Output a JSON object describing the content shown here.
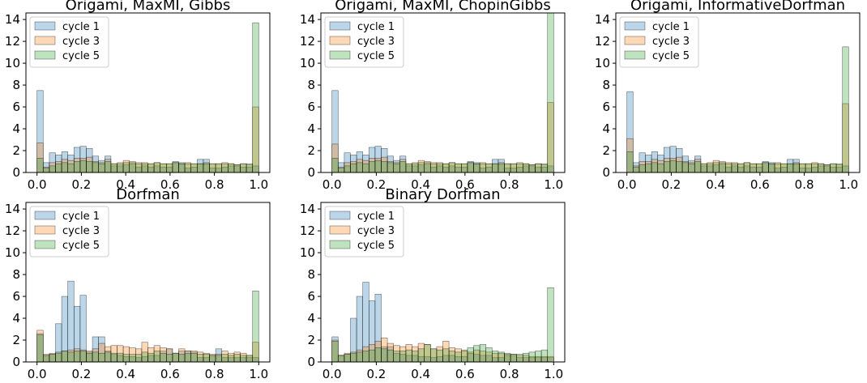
{
  "colors": {
    "cycle1": "#1f77b4",
    "cycle3": "#ff7f0e",
    "cycle5": "#2ca02c"
  },
  "chart_data": [
    {
      "type": "bar",
      "subtype": "overlaid-histogram",
      "title": "Origami, MaxMI, Gibbs",
      "xlim": [
        -0.05,
        1.05
      ],
      "ylim": [
        0,
        14.6
      ],
      "xticks": [
        "0.0",
        "0.2",
        "0.4",
        "0.6",
        "0.8",
        "1.0"
      ],
      "yticks": [
        "0",
        "2",
        "4",
        "6",
        "8",
        "10",
        "12",
        "14"
      ],
      "legend": {
        "placement": "top-left",
        "entries": [
          "cycle 1",
          "cycle 3",
          "cycle 5"
        ]
      },
      "bin_range": [
        0,
        1
      ],
      "series": [
        {
          "name": "cycle 1",
          "values": [
            7.5,
            0.9,
            1.8,
            1.6,
            1.9,
            1.6,
            2.3,
            2.4,
            2.2,
            1.5,
            1.1,
            1.5,
            0.6,
            0.6,
            0.7,
            0.8,
            0.5,
            0.6,
            0.5,
            0.6,
            0.5,
            0.5,
            1.0,
            0.9,
            0.4,
            0.5,
            1.2,
            1.2,
            0.4,
            0.4,
            0.5,
            0.6,
            0.6,
            0.5,
            0.5,
            0.6
          ]
        },
        {
          "name": "cycle 3",
          "values": [
            2.7,
            0.5,
            0.9,
            1.0,
            1.2,
            1.1,
            1.3,
            1.3,
            1.4,
            1.0,
            0.9,
            1.2,
            0.8,
            0.9,
            1.1,
            1.0,
            0.9,
            0.9,
            0.8,
            0.9,
            0.8,
            0.8,
            0.9,
            0.8,
            0.9,
            0.8,
            0.8,
            0.9,
            0.8,
            0.8,
            0.9,
            0.8,
            0.7,
            0.8,
            0.7,
            6.0
          ]
        },
        {
          "name": "cycle 5",
          "values": [
            1.3,
            0.4,
            0.6,
            0.8,
            0.9,
            0.8,
            1.0,
            1.1,
            1.0,
            0.9,
            0.8,
            1.0,
            0.8,
            0.8,
            0.9,
            0.9,
            0.8,
            0.8,
            0.8,
            0.9,
            0.8,
            0.8,
            0.9,
            0.8,
            0.8,
            0.8,
            0.8,
            0.8,
            0.8,
            0.8,
            0.8,
            0.8,
            0.7,
            0.8,
            0.8,
            13.7
          ]
        }
      ]
    },
    {
      "type": "bar",
      "subtype": "overlaid-histogram",
      "title": "Origami, MaxMI, ChopinGibbs",
      "xlim": [
        -0.05,
        1.05
      ],
      "ylim": [
        0,
        14.6
      ],
      "xticks": [
        "0.0",
        "0.2",
        "0.4",
        "0.6",
        "0.8",
        "1.0"
      ],
      "yticks": [
        "0",
        "2",
        "4",
        "6",
        "8",
        "10",
        "12",
        "14"
      ],
      "legend": {
        "placement": "top-left",
        "entries": [
          "cycle 1",
          "cycle 3",
          "cycle 5"
        ]
      },
      "bin_range": [
        0,
        1
      ],
      "series": [
        {
          "name": "cycle 1",
          "values": [
            7.5,
            0.9,
            1.8,
            1.6,
            1.9,
            1.6,
            2.3,
            2.4,
            2.2,
            1.5,
            1.1,
            1.5,
            0.6,
            0.6,
            0.7,
            0.8,
            0.5,
            0.6,
            0.5,
            0.6,
            0.5,
            0.5,
            1.0,
            0.9,
            0.4,
            0.5,
            1.2,
            1.2,
            0.4,
            0.4,
            0.5,
            0.6,
            0.6,
            0.5,
            0.5,
            0.6
          ]
        },
        {
          "name": "cycle 3",
          "values": [
            2.6,
            0.5,
            0.9,
            1.0,
            1.2,
            1.1,
            1.3,
            1.3,
            1.4,
            1.0,
            0.9,
            1.2,
            0.8,
            0.9,
            1.1,
            1.0,
            0.9,
            0.9,
            0.8,
            0.9,
            0.8,
            0.8,
            0.9,
            0.8,
            0.9,
            0.8,
            0.8,
            0.9,
            0.8,
            0.8,
            0.9,
            0.8,
            0.7,
            0.8,
            0.7,
            6.4
          ]
        },
        {
          "name": "cycle 5",
          "values": [
            1.3,
            0.4,
            0.6,
            0.8,
            0.9,
            0.8,
            1.0,
            1.1,
            1.0,
            0.9,
            0.8,
            1.0,
            0.8,
            0.8,
            0.9,
            0.9,
            0.8,
            0.8,
            0.8,
            0.9,
            0.8,
            0.8,
            0.9,
            0.8,
            0.8,
            0.8,
            0.8,
            0.8,
            0.8,
            0.8,
            0.8,
            0.8,
            0.7,
            0.8,
            0.8,
            14.6
          ]
        }
      ]
    },
    {
      "type": "bar",
      "subtype": "overlaid-histogram",
      "title": "Origami, InformativeDorfman",
      "xlim": [
        -0.05,
        1.05
      ],
      "ylim": [
        0,
        14.6
      ],
      "xticks": [
        "0.0",
        "0.2",
        "0.4",
        "0.6",
        "0.8",
        "1.0"
      ],
      "yticks": [
        "0",
        "2",
        "4",
        "6",
        "8",
        "10",
        "12",
        "14"
      ],
      "legend": {
        "placement": "top-left",
        "entries": [
          "cycle 1",
          "cycle 3",
          "cycle 5"
        ]
      },
      "bin_range": [
        0,
        1
      ],
      "series": [
        {
          "name": "cycle 1",
          "values": [
            7.4,
            0.9,
            1.8,
            1.6,
            1.9,
            1.6,
            2.3,
            2.4,
            2.2,
            1.5,
            1.1,
            1.5,
            0.6,
            0.6,
            0.7,
            0.8,
            0.5,
            0.6,
            0.5,
            0.6,
            0.5,
            0.5,
            1.0,
            0.9,
            0.4,
            0.5,
            1.2,
            1.2,
            0.4,
            0.4,
            0.5,
            0.6,
            0.6,
            0.5,
            0.5,
            0.6
          ]
        },
        {
          "name": "cycle 3",
          "values": [
            3.1,
            0.6,
            1.0,
            1.0,
            1.2,
            1.1,
            1.3,
            1.3,
            1.4,
            1.0,
            0.9,
            1.2,
            0.8,
            0.9,
            1.1,
            1.0,
            0.9,
            0.9,
            0.8,
            0.9,
            0.8,
            0.8,
            0.9,
            0.8,
            0.9,
            0.8,
            0.8,
            0.9,
            0.8,
            0.8,
            0.9,
            0.8,
            0.7,
            0.8,
            0.7,
            6.3
          ]
        },
        {
          "name": "cycle 5",
          "values": [
            1.9,
            0.5,
            0.7,
            0.8,
            0.9,
            0.8,
            1.0,
            1.1,
            1.0,
            0.9,
            0.8,
            1.0,
            0.8,
            0.8,
            0.9,
            0.9,
            0.8,
            0.8,
            0.8,
            0.9,
            0.8,
            0.8,
            0.9,
            0.8,
            0.8,
            0.8,
            0.8,
            0.8,
            0.8,
            0.8,
            0.8,
            0.8,
            0.7,
            0.8,
            0.8,
            11.5
          ]
        }
      ]
    },
    {
      "type": "bar",
      "subtype": "overlaid-histogram",
      "title": "Dorfman",
      "xlim": [
        -0.05,
        1.05
      ],
      "ylim": [
        0,
        14.6
      ],
      "xticks": [
        "0.0",
        "0.2",
        "0.4",
        "0.6",
        "0.8",
        "1.0"
      ],
      "yticks": [
        "0",
        "2",
        "4",
        "6",
        "8",
        "10",
        "12",
        "14"
      ],
      "legend": {
        "placement": "top-left",
        "entries": [
          "cycle 1",
          "cycle 3",
          "cycle 5"
        ]
      },
      "bin_range": [
        0,
        1
      ],
      "series": [
        {
          "name": "cycle 1",
          "values": [
            2.6,
            0.6,
            0.7,
            3.5,
            6.0,
            7.4,
            5.1,
            6.1,
            0.9,
            2.3,
            2.3,
            1.0,
            0.7,
            0.6,
            0.5,
            0.5,
            0.4,
            0.5,
            0.6,
            0.6,
            1.0,
            1.2,
            0.8,
            1.0,
            1.0,
            0.9,
            0.4,
            0.4,
            0.6,
            1.2,
            0.4,
            0.4,
            0.4,
            0.4,
            0.4,
            0.4
          ]
        },
        {
          "name": "cycle 3",
          "values": [
            2.9,
            0.7,
            0.8,
            0.8,
            1.0,
            1.1,
            1.2,
            1.1,
            1.0,
            1.2,
            1.7,
            1.4,
            1.5,
            1.5,
            1.4,
            1.3,
            1.2,
            1.8,
            1.3,
            1.5,
            1.3,
            1.2,
            0.8,
            1.2,
            1.0,
            1.0,
            0.9,
            0.8,
            0.7,
            0.7,
            1.0,
            0.8,
            0.9,
            0.8,
            0.6,
            1.8
          ]
        },
        {
          "name": "cycle 5",
          "values": [
            2.5,
            0.6,
            0.7,
            0.9,
            1.0,
            0.9,
            1.0,
            1.0,
            0.8,
            0.9,
            0.8,
            0.9,
            0.8,
            0.8,
            0.7,
            0.7,
            0.7,
            0.9,
            0.8,
            1.0,
            0.8,
            0.7,
            0.8,
            0.7,
            0.8,
            0.8,
            0.7,
            0.7,
            0.6,
            0.6,
            0.7,
            0.6,
            0.7,
            0.6,
            0.6,
            6.5
          ]
        }
      ]
    },
    {
      "type": "bar",
      "subtype": "overlaid-histogram",
      "title": "Binary Dorfman",
      "xlim": [
        -0.05,
        1.05
      ],
      "ylim": [
        0,
        14.6
      ],
      "xticks": [
        "0.0",
        "0.2",
        "0.4",
        "0.6",
        "0.8",
        "1.0"
      ],
      "yticks": [
        "0",
        "2",
        "4",
        "6",
        "8",
        "10",
        "12",
        "14"
      ],
      "legend": {
        "placement": "top-left",
        "entries": [
          "cycle 1",
          "cycle 3",
          "cycle 5"
        ]
      },
      "bin_range": [
        0,
        1
      ],
      "series": [
        {
          "name": "cycle 1",
          "values": [
            2.3,
            0.6,
            0.7,
            4.0,
            6.0,
            7.3,
            5.6,
            6.2,
            1.4,
            1.4,
            0.8,
            0.7,
            0.6,
            0.6,
            0.5,
            0.5,
            0.4,
            0.5,
            0.6,
            0.6,
            0.5,
            0.5,
            0.8,
            0.7,
            0.6,
            0.6,
            0.4,
            0.4,
            0.6,
            0.6,
            0.4,
            0.4,
            0.4,
            0.4,
            0.4,
            0.4
          ]
        },
        {
          "name": "cycle 3",
          "values": [
            2.0,
            0.6,
            0.8,
            0.9,
            1.1,
            1.4,
            1.6,
            1.9,
            2.2,
            1.7,
            1.5,
            1.4,
            1.6,
            1.4,
            1.7,
            1.6,
            1.2,
            1.4,
            1.9,
            1.3,
            1.2,
            1.1,
            0.9,
            1.1,
            1.0,
            0.9,
            0.8,
            0.8,
            0.7,
            0.7,
            0.6,
            0.6,
            0.5,
            0.5,
            0.5,
            0.5
          ]
        },
        {
          "name": "cycle 5",
          "values": [
            1.9,
            0.6,
            0.7,
            0.8,
            0.9,
            1.0,
            1.1,
            1.3,
            1.2,
            1.1,
            1.0,
            1.0,
            1.1,
            1.0,
            1.2,
            1.6,
            1.2,
            1.1,
            1.2,
            1.0,
            0.9,
            1.0,
            1.3,
            1.5,
            1.6,
            1.3,
            1.0,
            0.9,
            0.8,
            0.7,
            0.7,
            0.8,
            0.9,
            1.0,
            1.1,
            6.8
          ]
        }
      ]
    }
  ]
}
